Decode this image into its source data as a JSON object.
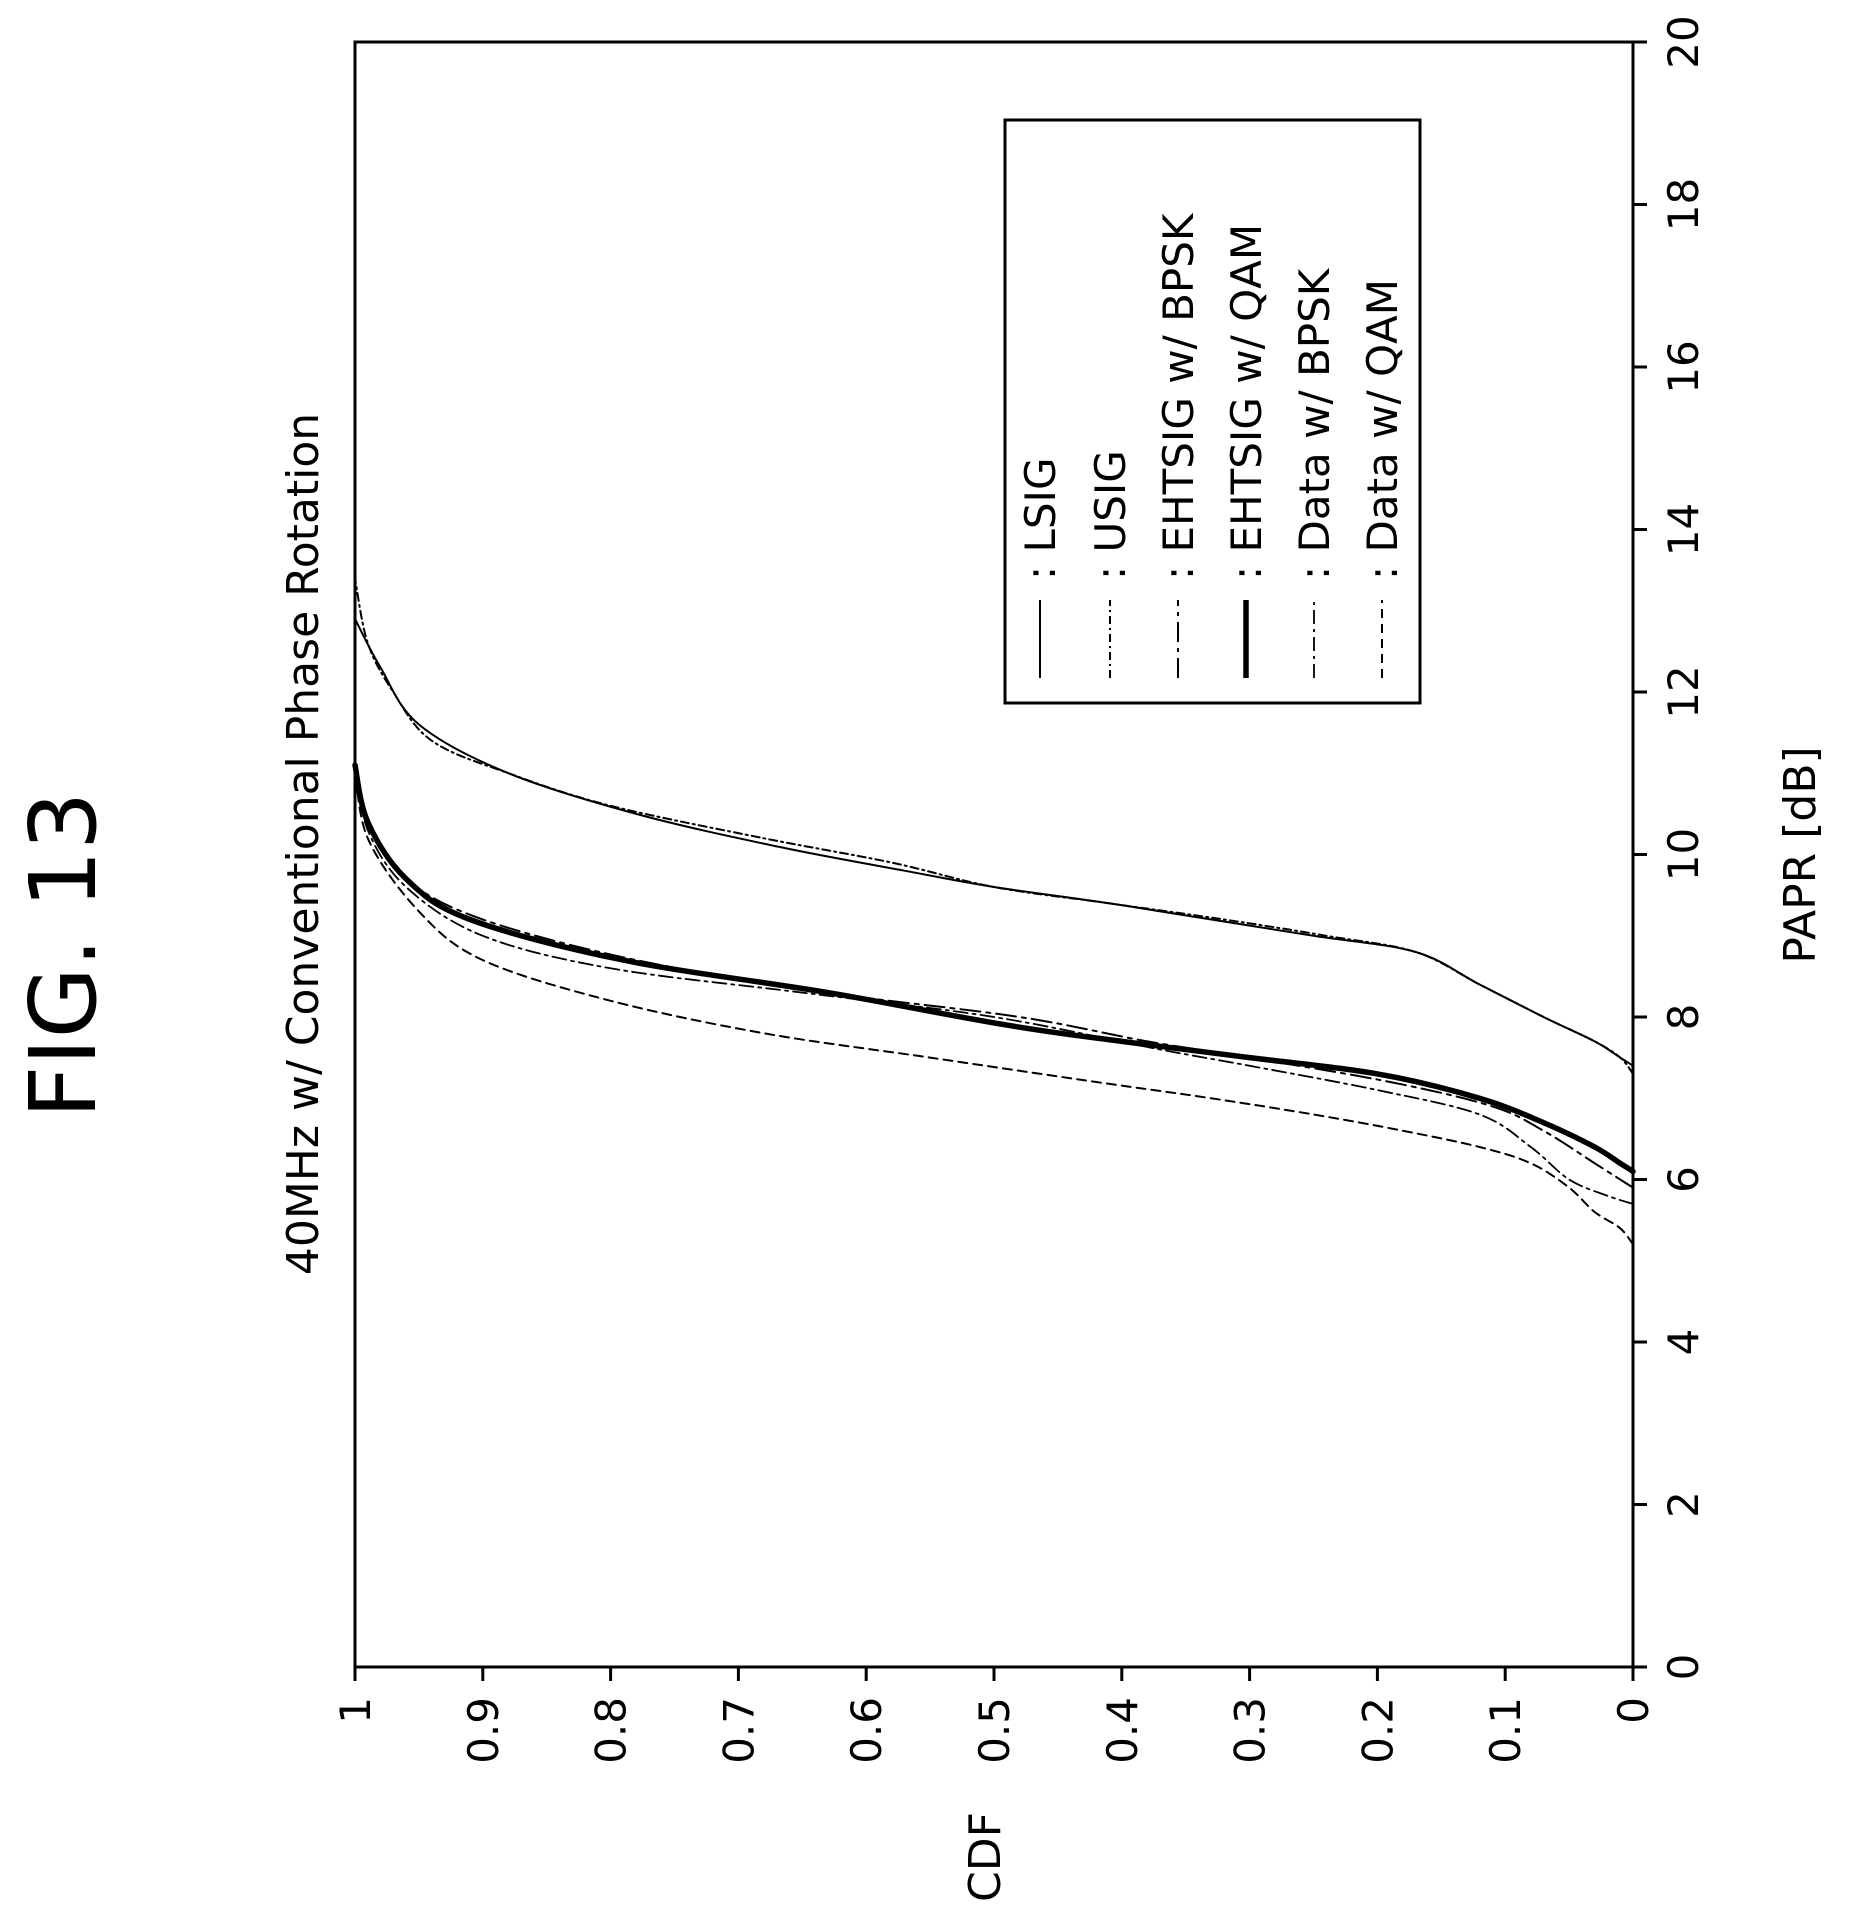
{
  "figure_label": "FIG. 13",
  "chart_data": {
    "type": "line",
    "title": "40MHz w/ Conventional Phase Rotation",
    "xlabel": "PAPR [dB]",
    "ylabel": "CDF",
    "xlim": [
      0,
      20
    ],
    "ylim": [
      0,
      1
    ],
    "x_ticks": [
      "0",
      "2",
      "4",
      "6",
      "8",
      "10",
      "12",
      "14",
      "16",
      "18",
      "20"
    ],
    "y_ticks": [
      "0",
      "0.1",
      "0.2",
      "0.3",
      "0.4",
      "0.5",
      "0.6",
      "0.7",
      "0.8",
      "0.9",
      "1"
    ],
    "grid": false,
    "legend_position": "top-right",
    "orientation": "rotated 90 degrees clockwise",
    "series": [
      {
        "name": "LSIG",
        "style": "solid thin",
        "points": [
          [
            7.4,
            0
          ],
          [
            7.5,
            0.01
          ],
          [
            7.7,
            0.03
          ],
          [
            8.0,
            0.07
          ],
          [
            8.4,
            0.12
          ],
          [
            8.8,
            0.17
          ],
          [
            9.0,
            0.25
          ],
          [
            9.2,
            0.33
          ],
          [
            9.4,
            0.41
          ],
          [
            9.6,
            0.5
          ],
          [
            9.8,
            0.57
          ],
          [
            10.1,
            0.67
          ],
          [
            10.5,
            0.78
          ],
          [
            11.0,
            0.88
          ],
          [
            11.6,
            0.95
          ],
          [
            12.3,
            0.98
          ],
          [
            12.9,
            1.0
          ]
        ]
      },
      {
        "name": "USIG",
        "style": "dense dash-dot",
        "points": [
          [
            7.3,
            0
          ],
          [
            7.5,
            0.01
          ],
          [
            7.7,
            0.03
          ],
          [
            8.0,
            0.07
          ],
          [
            8.4,
            0.12
          ],
          [
            8.8,
            0.17
          ],
          [
            9.0,
            0.24
          ],
          [
            9.2,
            0.32
          ],
          [
            9.4,
            0.41
          ],
          [
            9.6,
            0.5
          ],
          [
            9.9,
            0.58
          ],
          [
            10.2,
            0.68
          ],
          [
            10.6,
            0.8
          ],
          [
            11.0,
            0.88
          ],
          [
            11.4,
            0.94
          ],
          [
            12.0,
            0.97
          ],
          [
            12.6,
            0.99
          ],
          [
            13.4,
            1.0
          ]
        ]
      },
      {
        "name": "EHTSIG w/ BPSK",
        "style": "long dash-dot",
        "points": [
          [
            5.9,
            0
          ],
          [
            6.0,
            0.01
          ],
          [
            6.2,
            0.03
          ],
          [
            6.6,
            0.07
          ],
          [
            6.9,
            0.11
          ],
          [
            7.2,
            0.19
          ],
          [
            7.5,
            0.3
          ],
          [
            7.7,
            0.38
          ],
          [
            8.0,
            0.48
          ],
          [
            8.3,
            0.63
          ],
          [
            8.7,
            0.78
          ],
          [
            9.2,
            0.9
          ],
          [
            9.7,
            0.96
          ],
          [
            10.4,
            0.99
          ],
          [
            11.1,
            1.0
          ]
        ]
      },
      {
        "name": "EHTSIG w/ QAM",
        "style": "solid thick",
        "points": [
          [
            6.1,
            0
          ],
          [
            6.2,
            0.01
          ],
          [
            6.4,
            0.03
          ],
          [
            6.7,
            0.07
          ],
          [
            7.0,
            0.12
          ],
          [
            7.3,
            0.2
          ],
          [
            7.5,
            0.3
          ],
          [
            7.7,
            0.4
          ],
          [
            7.9,
            0.49
          ],
          [
            8.3,
            0.63
          ],
          [
            8.7,
            0.79
          ],
          [
            9.2,
            0.91
          ],
          [
            9.7,
            0.96
          ],
          [
            10.4,
            0.99
          ],
          [
            11.1,
            1.0
          ]
        ]
      },
      {
        "name": "Data w/ BPSK",
        "style": "dash-dot thin",
        "points": [
          [
            5.7,
            0
          ],
          [
            5.8,
            0.02
          ],
          [
            6.0,
            0.05
          ],
          [
            6.4,
            0.08
          ],
          [
            6.8,
            0.12
          ],
          [
            7.1,
            0.2
          ],
          [
            7.4,
            0.3
          ],
          [
            7.6,
            0.37
          ],
          [
            8.0,
            0.5
          ],
          [
            8.3,
            0.65
          ],
          [
            8.6,
            0.8
          ],
          [
            9.0,
            0.9
          ],
          [
            9.6,
            0.96
          ],
          [
            10.3,
            0.99
          ],
          [
            11.1,
            1.0
          ]
        ]
      },
      {
        "name": "Data w/ QAM",
        "style": "short dash",
        "points": [
          [
            5.2,
            0
          ],
          [
            5.4,
            0.01
          ],
          [
            5.6,
            0.03
          ],
          [
            5.9,
            0.05
          ],
          [
            6.2,
            0.08
          ],
          [
            6.4,
            0.12
          ],
          [
            6.6,
            0.18
          ],
          [
            6.8,
            0.25
          ],
          [
            7.0,
            0.33
          ],
          [
            7.2,
            0.42
          ],
          [
            7.5,
            0.55
          ],
          [
            7.8,
            0.68
          ],
          [
            8.2,
            0.8
          ],
          [
            8.7,
            0.9
          ],
          [
            9.3,
            0.95
          ],
          [
            10.2,
            0.99
          ],
          [
            11.1,
            1.0
          ]
        ]
      }
    ]
  }
}
